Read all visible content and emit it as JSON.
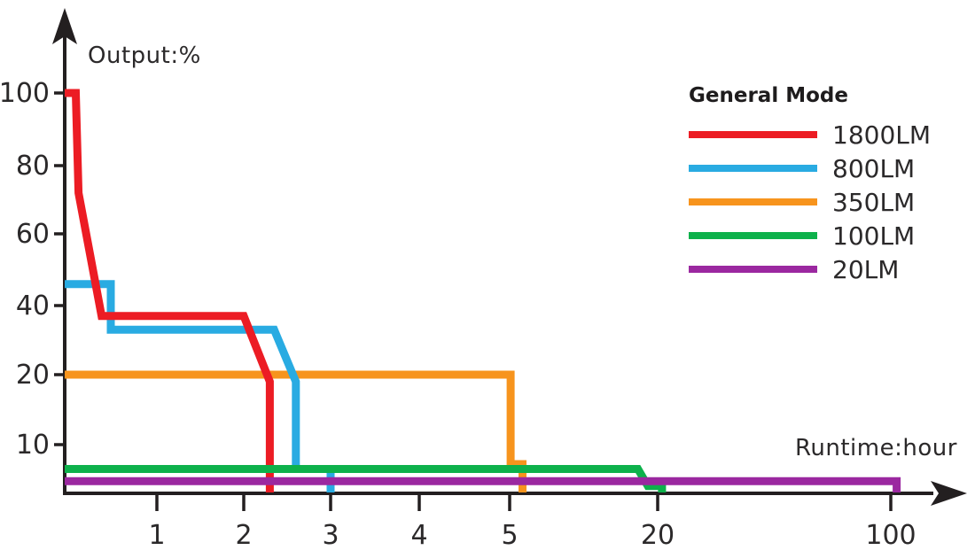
{
  "chart_data": {
    "type": "line",
    "title": "",
    "xlabel": "Runtime:hour",
    "ylabel": "Output:%",
    "legend_title": "General Mode",
    "legend_position": "upper right",
    "grid": false,
    "x_scale": "log-like (as drawn)",
    "y_scale": "compressed (as drawn)",
    "x_ticks": [
      1,
      2,
      3,
      4,
      5,
      20,
      100
    ],
    "y_ticks": [
      10,
      20,
      40,
      60,
      80,
      100
    ],
    "xlim": [
      0,
      110
    ],
    "ylim": [
      0,
      100
    ],
    "axis_color": "#231F20",
    "series": [
      {
        "name": "1800LM",
        "color": "#EC1C24",
        "points": [
          [
            0,
            100
          ],
          [
            0.12,
            100
          ],
          [
            0.15,
            72
          ],
          [
            0.4,
            37
          ],
          [
            2.0,
            37
          ],
          [
            2.3,
            19
          ],
          [
            2.3,
            0
          ]
        ]
      },
      {
        "name": "800LM",
        "color": "#29ABE2",
        "points": [
          [
            0,
            46
          ],
          [
            0.5,
            46
          ],
          [
            0.5,
            33
          ],
          [
            2.35,
            33
          ],
          [
            2.6,
            19
          ],
          [
            2.6,
            5
          ],
          [
            3.0,
            5
          ],
          [
            3.0,
            0
          ]
        ]
      },
      {
        "name": "350LM",
        "color": "#F7941D",
        "points": [
          [
            0,
            20
          ],
          [
            5.1,
            20
          ],
          [
            5.1,
            6
          ],
          [
            6.3,
            6
          ],
          [
            6.3,
            0
          ]
        ]
      },
      {
        "name": "100LM",
        "color": "#0DB14B",
        "points": [
          [
            0,
            5
          ],
          [
            18,
            5
          ],
          [
            19,
            1.5
          ],
          [
            21.5,
            1.5
          ],
          [
            21.5,
            0
          ]
        ]
      },
      {
        "name": "20LM",
        "color": "#9B28A0",
        "points": [
          [
            0,
            2.5
          ],
          [
            102,
            2.5
          ],
          [
            102,
            0
          ]
        ]
      }
    ]
  }
}
